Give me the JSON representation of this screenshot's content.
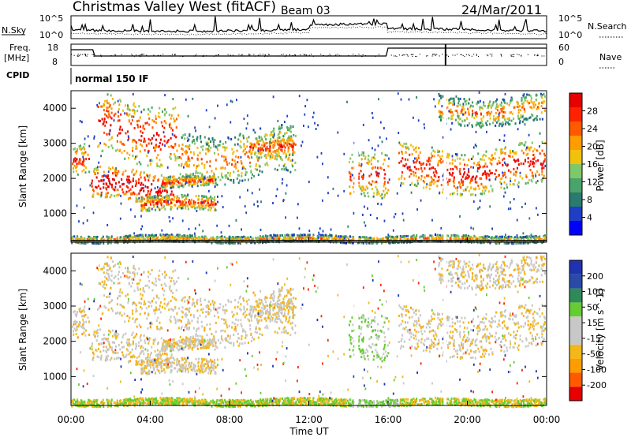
{
  "header": {
    "station": "Christmas Valley West (fitACF)",
    "beam": "Beam 03",
    "date": "24/Mar/2011"
  },
  "top_panels": {
    "nsky_label": "N.Sky",
    "nsky_left_ticks": [
      "10^5",
      "10^0"
    ],
    "nsky_right_ticks": [
      "10^5",
      "10^0"
    ],
    "nsearch_label": "N.Search",
    "freq_label_1": "Freq.",
    "freq_label_2": "[MHz]",
    "freq_left_ticks": [
      "18",
      "8"
    ],
    "freq_right_ticks": [
      "60",
      "0"
    ],
    "nave_label": "Nave",
    "cpid_label": "CPID",
    "cpid_value": "normal 150 IF"
  },
  "colors": {
    "power_scale": [
      "#0000ff",
      "#1e3ec8",
      "#2a7a6e",
      "#4aa36a",
      "#7fc86a",
      "#f2c10d",
      "#ff9c00",
      "#ff5a00",
      "#ff2200",
      "#e60000"
    ],
    "velocity_scale": [
      "#e60000",
      "#ff5a00",
      "#ff9c00",
      "#f2b81a",
      "#c8c8c8",
      "#c8c8c8",
      "#66cc33",
      "#2e8b57",
      "#2a4aa8",
      "#1f33b0"
    ]
  },
  "chart_data": [
    {
      "type": "heatmap",
      "title": "Power",
      "ylabel": "Slant Range [km]",
      "xlabel": "Time UT",
      "x_ticks": [
        "00:00",
        "04:00",
        "08:00",
        "12:00",
        "16:00",
        "20:00",
        "00:00"
      ],
      "y_ticks": [
        "1000",
        "2000",
        "3000",
        "4000"
      ],
      "ylim": [
        180,
        4500
      ],
      "colorbar": {
        "label": "Power [dB]",
        "ticks": [
          "4",
          "8",
          "12",
          "16",
          "20",
          "24",
          "28"
        ],
        "range": [
          0,
          32
        ]
      },
      "bands": [
        {
          "t0": 0.0,
          "t1": 0.9,
          "r0": 2100,
          "r1": 2950,
          "level": 0.6
        },
        {
          "t0": 1.0,
          "t1": 5.2,
          "r0": 1350,
          "r1": 2250,
          "level": 0.85
        },
        {
          "t0": 1.3,
          "t1": 5.4,
          "r0": 2600,
          "r1": 4300,
          "level": 0.7
        },
        {
          "t0": 5.4,
          "t1": 11.3,
          "r0": 2000,
          "r1": 3400,
          "level": 0.4
        },
        {
          "t0": 9.0,
          "t1": 11.3,
          "r0": 2700,
          "r1": 3300,
          "level": 0.55
        },
        {
          "t0": 4.5,
          "t1": 7.3,
          "r0": 1800,
          "r1": 2100,
          "level": 0.55
        },
        {
          "t0": 3.5,
          "t1": 7.3,
          "r0": 1100,
          "r1": 1500,
          "level": 0.6
        },
        {
          "t0": 14.0,
          "t1": 16.0,
          "r0": 1300,
          "r1": 2600,
          "level": 0.6
        },
        {
          "t0": 16.5,
          "t1": 23.9,
          "r0": 1700,
          "r1": 2900,
          "level": 0.7
        },
        {
          "t0": 18.5,
          "t1": 23.9,
          "r0": 3600,
          "r1": 4400,
          "level": 0.35
        },
        {
          "t0": 0.0,
          "t1": 23.9,
          "r0": 200,
          "r1": 400,
          "level": 0.3
        }
      ]
    },
    {
      "type": "heatmap",
      "title": "Velocity",
      "ylabel": "Slant Range [km]",
      "xlabel": "Time UT",
      "x_ticks": [
        "00:00",
        "04:00",
        "08:00",
        "12:00",
        "16:00",
        "20:00",
        "00:00"
      ],
      "y_ticks": [
        "1000",
        "2000",
        "3000",
        "4000"
      ],
      "ylim": [
        180,
        4500
      ],
      "colorbar": {
        "label": "Velocity [m s^-1]",
        "ticks": [
          "200",
          "100",
          "50",
          "15",
          "-15",
          "-50",
          "-100",
          "-200"
        ],
        "range": [
          -250,
          250
        ]
      }
    }
  ]
}
